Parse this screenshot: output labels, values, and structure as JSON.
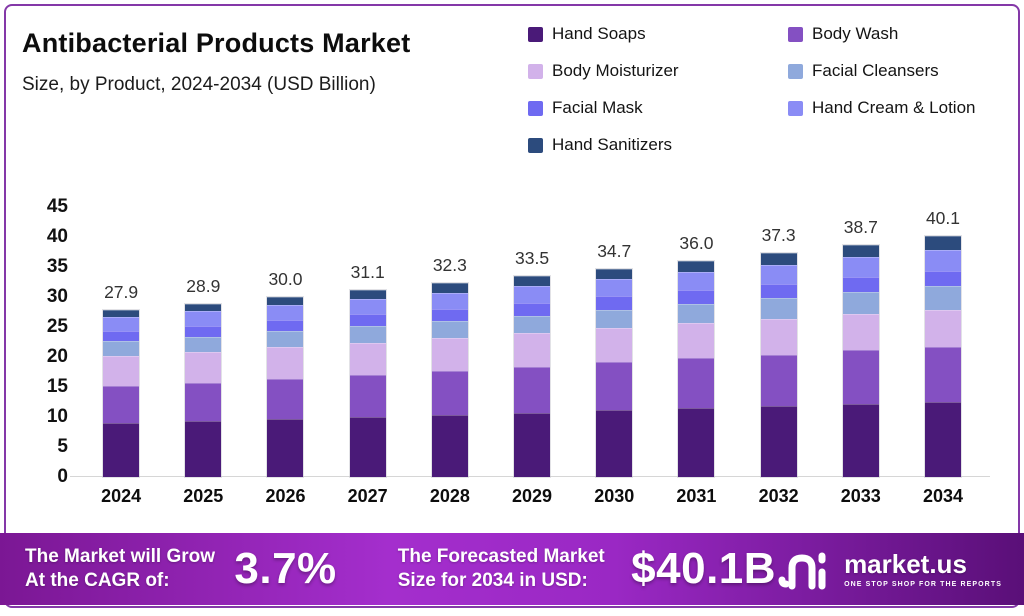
{
  "header": {
    "title": "Antibacterial Products Market",
    "subtitle": "Size, by Product, 2024-2034 (USD Billion)"
  },
  "legend": {
    "items": [
      {
        "label": "Hand Soaps",
        "color": "#4A1A78"
      },
      {
        "label": "Body Wash",
        "color": "#8450C2"
      },
      {
        "label": "Body Moisturizer",
        "color": "#D2B2EA"
      },
      {
        "label": "Facial Cleansers",
        "color": "#8FA9DC"
      },
      {
        "label": "Facial Mask",
        "color": "#6F6AF1"
      },
      {
        "label": "Hand Cream & Lotion",
        "color": "#8A8CF5"
      },
      {
        "label": "Hand Sanitizers",
        "color": "#2C4B7D"
      }
    ]
  },
  "chart_data": {
    "type": "bar",
    "stacked": true,
    "title": "Antibacterial Products Market",
    "subtitle": "Size, by Product, 2024-2034 (USD Billion)",
    "unit": "USD Billion",
    "categories": [
      "2024",
      "2025",
      "2026",
      "2027",
      "2028",
      "2029",
      "2030",
      "2031",
      "2032",
      "2033",
      "2034"
    ],
    "totals": [
      27.9,
      28.9,
      30.0,
      31.1,
      32.3,
      33.5,
      34.7,
      36.0,
      37.3,
      38.7,
      40.1
    ],
    "total_labels": [
      "27.9",
      "28.9",
      "30.0",
      "31.1",
      "32.3",
      "33.5",
      "34.7",
      "36.0",
      "37.3",
      "38.7",
      "40.1"
    ],
    "ylim": [
      0,
      45
    ],
    "yticks": [
      0,
      5,
      10,
      15,
      20,
      25,
      30,
      35,
      40,
      45
    ],
    "grid": false,
    "legend_position": "top-right",
    "series": [
      {
        "name": "Hand Soaps",
        "color": "#4A1A78",
        "values": [
          9.0,
          9.3,
          9.7,
          10.0,
          10.4,
          10.7,
          11.1,
          11.5,
          11.8,
          12.2,
          12.5
        ]
      },
      {
        "name": "Body Wash",
        "color": "#8450C2",
        "values": [
          6.1,
          6.4,
          6.7,
          7.0,
          7.3,
          7.7,
          8.0,
          8.3,
          8.6,
          8.9,
          9.2
        ]
      },
      {
        "name": "Body Moisturizer",
        "color": "#D2B2EA",
        "values": [
          5.1,
          5.2,
          5.3,
          5.4,
          5.5,
          5.6,
          5.7,
          5.8,
          5.9,
          6.0,
          6.1
        ]
      },
      {
        "name": "Facial Cleansers",
        "color": "#8FA9DC",
        "values": [
          2.4,
          2.5,
          2.6,
          2.7,
          2.8,
          2.9,
          3.1,
          3.3,
          3.5,
          3.7,
          4.0
        ]
      },
      {
        "name": "Facial Mask",
        "color": "#6F6AF1",
        "values": [
          1.7,
          1.8,
          1.9,
          2.0,
          2.0,
          2.1,
          2.2,
          2.3,
          2.4,
          2.5,
          2.6
        ]
      },
      {
        "name": "Hand Cream & Lotion",
        "color": "#8A8CF5",
        "values": [
          2.3,
          2.4,
          2.5,
          2.6,
          2.7,
          2.8,
          2.9,
          3.0,
          3.1,
          3.3,
          3.4
        ]
      },
      {
        "name": "Hand Sanitizers",
        "color": "#2C4B7D",
        "values": [
          1.3,
          1.3,
          1.3,
          1.4,
          1.6,
          1.7,
          1.7,
          1.8,
          2.0,
          2.1,
          2.3
        ]
      }
    ]
  },
  "banner": {
    "cagr_label_line1": "The Market will Grow",
    "cagr_label_line2": "At the CAGR of:",
    "cagr_value": "3.7%",
    "forecast_label_line1": "The Forecasted Market",
    "forecast_label_line2": "Size for 2034 in USD:",
    "forecast_value": "$40.1B",
    "logo_text": "market.us",
    "logo_tagline": "ONE STOP SHOP FOR THE REPORTS"
  }
}
